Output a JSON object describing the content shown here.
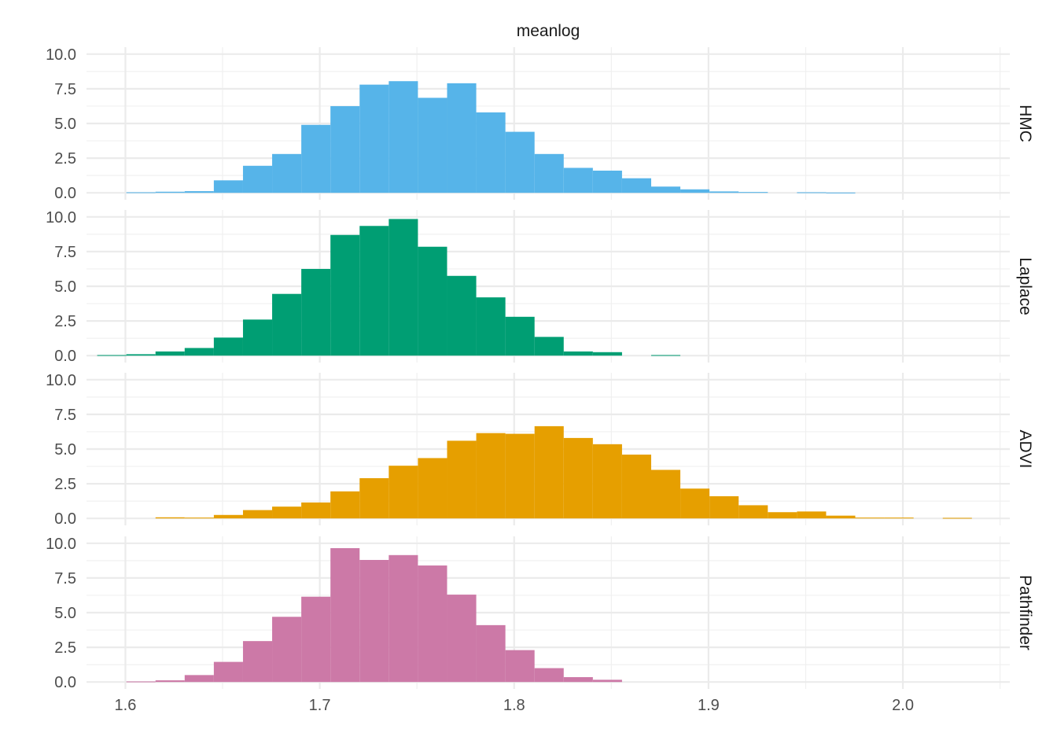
{
  "chart_data": {
    "type": "bar",
    "title": "meanlog",
    "xlim": [
      1.58,
      2.055
    ],
    "ylim": [
      -0.5,
      10.5
    ],
    "x_ticks": [
      "1.6",
      "1.7",
      "1.8",
      "1.9",
      "2.0"
    ],
    "y_ticks": [
      "0.0",
      "2.5",
      "5.0",
      "7.5",
      "10.0"
    ],
    "bins": {
      "start": 1.5855,
      "width": 0.015
    },
    "grid": true,
    "facets": [
      {
        "name": "HMC",
        "color": "#56B4E9",
        "values": [
          0,
          0.04,
          0.08,
          0.12,
          0.9,
          1.95,
          2.8,
          4.9,
          6.25,
          7.8,
          8.05,
          6.85,
          7.9,
          5.8,
          4.4,
          2.8,
          1.8,
          1.6,
          1.05,
          0.45,
          0.25,
          0.1,
          0.06,
          0,
          0.04,
          0.02,
          0,
          0,
          0,
          0,
          0,
          0
        ]
      },
      {
        "name": "Laplace",
        "color": "#009E73",
        "values": [
          0.04,
          0.1,
          0.3,
          0.55,
          1.3,
          2.6,
          4.45,
          6.25,
          8.7,
          9.35,
          9.85,
          7.85,
          5.75,
          4.2,
          2.8,
          1.35,
          0.3,
          0.25,
          0,
          0.04,
          0,
          0,
          0,
          0,
          0,
          0,
          0,
          0,
          0,
          0,
          0,
          0
        ]
      },
      {
        "name": "ADVI",
        "color": "#E69F00",
        "values": [
          0,
          0,
          0.08,
          0.06,
          0.25,
          0.6,
          0.85,
          1.15,
          1.95,
          2.9,
          3.8,
          4.35,
          5.6,
          6.15,
          6.1,
          6.65,
          5.8,
          5.35,
          4.6,
          3.5,
          2.15,
          1.6,
          0.95,
          0.45,
          0.5,
          0.2,
          0.06,
          0.06,
          0,
          0.04,
          0,
          0
        ]
      },
      {
        "name": "Pathfinder",
        "color": "#CC79A7",
        "values": [
          0,
          0.04,
          0.12,
          0.5,
          1.45,
          2.95,
          4.7,
          6.15,
          9.65,
          8.8,
          9.15,
          8.4,
          6.3,
          4.1,
          2.3,
          1.0,
          0.35,
          0.16,
          0,
          0,
          0,
          0,
          0,
          0,
          0,
          0,
          0,
          0,
          0,
          0,
          0,
          0
        ]
      }
    ]
  }
}
